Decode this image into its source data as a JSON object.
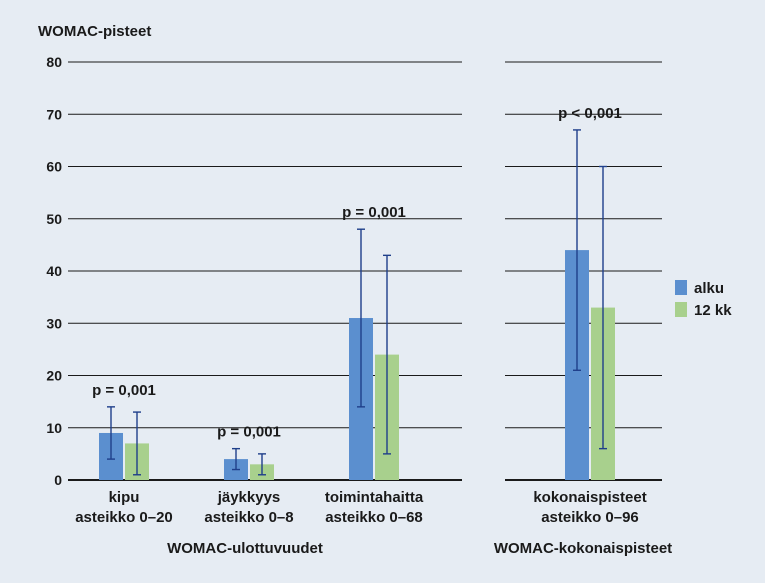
{
  "chart_data": {
    "type": "bar",
    "ylabel": "WOMAC-pisteet",
    "ylim": [
      0,
      80
    ],
    "yticks": [
      0,
      10,
      20,
      30,
      40,
      50,
      60,
      70,
      80
    ],
    "grid": true,
    "legend_position": "right",
    "series": [
      {
        "name": "alku",
        "color": "#5b8fcf"
      },
      {
        "name": "12 kk",
        "color": "#a8d08d"
      }
    ],
    "panels": [
      {
        "title": "WOMAC-ulottuvuudet",
        "categories": [
          {
            "line1": "kipu",
            "line2": "asteikko 0–20",
            "p_value": "p = 0,001",
            "values": [
              9,
              7
            ],
            "error_low": [
              4,
              1
            ],
            "error_high": [
              14,
              13
            ]
          },
          {
            "line1": "jäykkyys",
            "line2": "asteikko 0–8",
            "p_value": "p = 0,001",
            "values": [
              4,
              3
            ],
            "error_low": [
              2,
              1
            ],
            "error_high": [
              6,
              5
            ]
          },
          {
            "line1": "toimintahaitta",
            "line2": "asteikko 0–68",
            "p_value": "p = 0,001",
            "values": [
              31,
              24
            ],
            "error_low": [
              14,
              5
            ],
            "error_high": [
              48,
              43
            ]
          }
        ]
      },
      {
        "title": "WOMAC-kokonaispisteet",
        "categories": [
          {
            "line1": "kokonaispisteet",
            "line2": "asteikko 0–96",
            "p_value": "p < 0,001",
            "values": [
              44,
              33
            ],
            "error_low": [
              21,
              6
            ],
            "error_high": [
              67,
              60
            ]
          }
        ]
      }
    ]
  }
}
